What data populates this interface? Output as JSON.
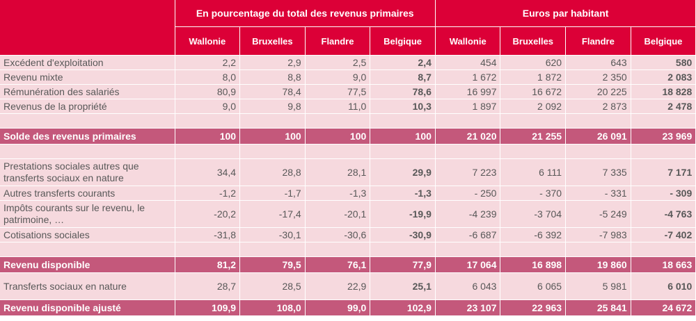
{
  "header": {
    "group_pct": "En pourcentage du total des revenus primaires",
    "group_eur": "Euros par habitant",
    "regions": [
      "Wallonie",
      "Bruxelles",
      "Flandre",
      "Belgique"
    ]
  },
  "rows": {
    "excedent": {
      "label": "Excédent d'exploitation",
      "v": [
        "2,2",
        "2,9",
        "2,5",
        "2,4",
        "454",
        "620",
        "643",
        "580"
      ]
    },
    "mixte": {
      "label": "Revenu mixte",
      "v": [
        "8,0",
        "8,8",
        "9,0",
        "8,7",
        "1 672",
        "1 872",
        "2 350",
        "2 083"
      ]
    },
    "remuneration": {
      "label": "Rémunération des salariés",
      "v": [
        "80,9",
        "78,4",
        "77,5",
        "78,6",
        "16 997",
        "16 672",
        "20 225",
        "18 828"
      ]
    },
    "propriete": {
      "label": "Revenus de la propriété",
      "v": [
        "9,0",
        "9,8",
        "11,0",
        "10,3",
        "1 897",
        "2 092",
        "2 873",
        "2 478"
      ]
    },
    "solde": {
      "label": "Solde des revenus primaires",
      "v": [
        "100",
        "100",
        "100",
        "100",
        "21 020",
        "21 255",
        "26 091",
        "23 969"
      ]
    },
    "prestations": {
      "label": "Prestations sociales autres que transferts sociaux en nature",
      "v": [
        "34,4",
        "28,8",
        "28,1",
        "29,9",
        "7 223",
        "6 111",
        "7 335",
        "7 171"
      ]
    },
    "autres": {
      "label": "Autres transferts courants",
      "v": [
        "-1,2",
        "-1,7",
        "-1,3",
        "-1,3",
        "- 250",
        "- 370",
        "- 331",
        "- 309"
      ]
    },
    "impots": {
      "label": "Impôts courants sur le revenu, le patrimoine, …",
      "v": [
        "-20,2",
        "-17,4",
        "-20,1",
        "-19,9",
        "-4 239",
        "-3 704",
        "-5 249",
        "-4 763"
      ]
    },
    "cotisations": {
      "label": "Cotisations sociales",
      "v": [
        "-31,8",
        "-30,1",
        "-30,6",
        "-30,9",
        "-6 687",
        "-6 392",
        "-7 983",
        "-7 402"
      ]
    },
    "disponible": {
      "label": "Revenu disponible",
      "v": [
        "81,2",
        "79,5",
        "76,1",
        "77,9",
        "17 064",
        "16 898",
        "19 860",
        "18 663"
      ]
    },
    "transferts": {
      "label": "Transferts sociaux en nature",
      "v": [
        "28,7",
        "28,5",
        "22,9",
        "25,1",
        "6 043",
        "6 065",
        "5 981",
        "6 010"
      ]
    },
    "ajuste": {
      "label": "Revenu disponible ajusté",
      "v": [
        "109,9",
        "108,0",
        "99,0",
        "102,9",
        "23 107",
        "22 963",
        "25 841",
        "24 672"
      ]
    }
  },
  "colors": {
    "header_bg": "#dc0037",
    "row_bg": "#f6d9de",
    "total_bg": "#c4587b",
    "text": "#585858"
  }
}
